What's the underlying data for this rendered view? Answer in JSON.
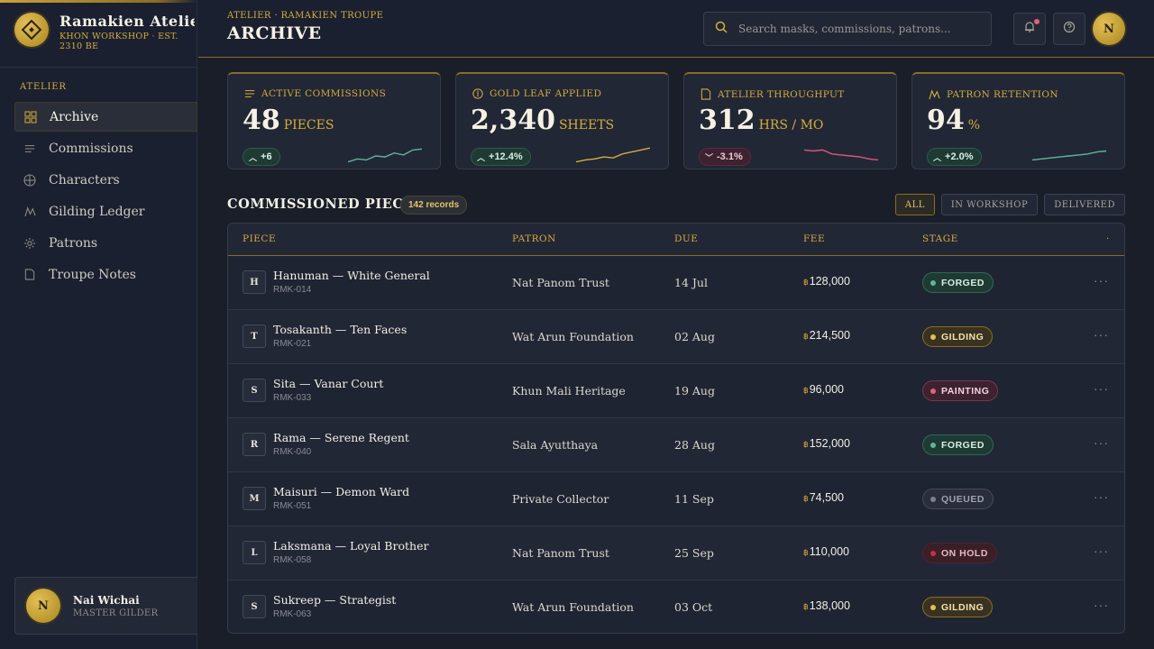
{
  "brand": {
    "name": "Ramakien Atelier",
    "subtitle": "KHON WORKSHOP · EST. 2310 BE"
  },
  "sidebar": {
    "section_label": "ATELIER",
    "items": [
      {
        "label": "Archive",
        "icon": "grid-icon",
        "active": true
      },
      {
        "label": "Commissions",
        "icon": "list-icon",
        "active": false
      },
      {
        "label": "Characters",
        "icon": "globe-icon",
        "active": false
      },
      {
        "label": "Gilding Ledger",
        "icon": "chart-icon",
        "active": false
      },
      {
        "label": "Patrons",
        "icon": "gear-icon",
        "active": false
      },
      {
        "label": "Troupe Notes",
        "icon": "document-icon",
        "active": false
      }
    ],
    "user": {
      "initial": "N",
      "name": "Nai Wichai",
      "role": "MASTER GILDER"
    }
  },
  "header": {
    "breadcrumb": "ATELIER · RAMAKIEN TROUPE",
    "title": "ARCHIVE",
    "search_placeholder": "Search masks, commissions, patrons...",
    "avatar_initial": "N"
  },
  "stats": [
    {
      "label": "ACTIVE COMMISSIONS",
      "icon": "list-icon",
      "value": "48",
      "unit": "PIECES",
      "delta": "+6",
      "direction": "up",
      "spark": [
        0.2,
        0.35,
        0.3,
        0.5,
        0.45,
        0.65,
        0.55,
        0.8,
        0.85
      ],
      "color": "#5fb59a"
    },
    {
      "label": "GOLD LEAF APPLIED",
      "icon": "coin-icon",
      "value": "2,340",
      "unit": "SHEETS",
      "delta": "+12.4%",
      "direction": "up",
      "spark": [
        0.2,
        0.3,
        0.35,
        0.45,
        0.4,
        0.6,
        0.7,
        0.8,
        0.9
      ],
      "color": "#d4ad3c"
    },
    {
      "label": "ATELIER THROUGHPUT",
      "icon": "document-icon",
      "value": "312",
      "unit": "HRS / MO",
      "delta": "-3.1%",
      "direction": "down",
      "spark": [
        0.8,
        0.75,
        0.8,
        0.6,
        0.55,
        0.5,
        0.45,
        0.35,
        0.3
      ],
      "color": "#d9577b"
    },
    {
      "label": "PATRON RETENTION",
      "icon": "chart-icon",
      "value": "94",
      "unit": "%",
      "delta": "+2.0%",
      "direction": "up",
      "spark": [
        0.3,
        0.35,
        0.4,
        0.45,
        0.5,
        0.55,
        0.6,
        0.7,
        0.75
      ],
      "color": "#5fb59a"
    }
  ],
  "table": {
    "title": "COMMISSIONED PIECES",
    "records_badge": "142 records",
    "filters": [
      {
        "label": "ALL",
        "active": true
      },
      {
        "label": "IN WORKSHOP",
        "active": false
      },
      {
        "label": "DELIVERED",
        "active": false
      }
    ],
    "columns": [
      "PIECE",
      "PATRON",
      "DUE",
      "FEE",
      "STAGE",
      "·"
    ],
    "currency_symbol": "฿",
    "rows": [
      {
        "initial": "H",
        "name": "Hanuman — White General",
        "code": "RMK-014",
        "patron": "Nat Panom Trust",
        "due": "14 Jul",
        "fee": "128,000",
        "stage": "FORGED"
      },
      {
        "initial": "T",
        "name": "Tosakanth — Ten Faces",
        "code": "RMK-021",
        "patron": "Wat Arun Foundation",
        "due": "02 Aug",
        "fee": "214,500",
        "stage": "GILDING"
      },
      {
        "initial": "S",
        "name": "Sita — Vanar Court",
        "code": "RMK-033",
        "patron": "Khun Mali Heritage",
        "due": "19 Aug",
        "fee": "96,000",
        "stage": "PAINTING"
      },
      {
        "initial": "R",
        "name": "Rama — Serene Regent",
        "code": "RMK-040",
        "patron": "Sala Ayutthaya",
        "due": "28 Aug",
        "fee": "152,000",
        "stage": "FORGED"
      },
      {
        "initial": "M",
        "name": "Maisuri — Demon Ward",
        "code": "RMK-051",
        "patron": "Private Collector",
        "due": "11 Sep",
        "fee": "74,500",
        "stage": "QUEUED"
      },
      {
        "initial": "L",
        "name": "Laksmana — Loyal Brother",
        "code": "RMK-058",
        "patron": "Nat Panom Trust",
        "due": "25 Sep",
        "fee": "110,000",
        "stage": "ON HOLD"
      },
      {
        "initial": "S",
        "name": "Sukreep — Strategist",
        "code": "RMK-063",
        "patron": "Wat Arun Foundation",
        "due": "03 Oct",
        "fee": "138,000",
        "stage": "GILDING"
      }
    ]
  },
  "stage_colors": {
    "FORGED": {
      "bg": "#1f3a33",
      "border": "#2f6a55",
      "text": "#d7efe3",
      "dot": "#5fb59a"
    },
    "GILDING": {
      "bg": "#3a3220",
      "border": "#8a6d24",
      "text": "#f3e3b0",
      "dot": "#e3bf55"
    },
    "PAINTING": {
      "bg": "#3d2230",
      "border": "#7a3550",
      "text": "#f3d3de",
      "dot": "#e0607c"
    },
    "QUEUED": {
      "bg": "#2a2e3a",
      "border": "#454a5a",
      "text": "#9da2b0",
      "dot": "#7c8296"
    },
    "ON HOLD": {
      "bg": "#3a1f26",
      "border": "#4d2430",
      "text": "#e8b9c2",
      "dot": "#c43048"
    }
  }
}
